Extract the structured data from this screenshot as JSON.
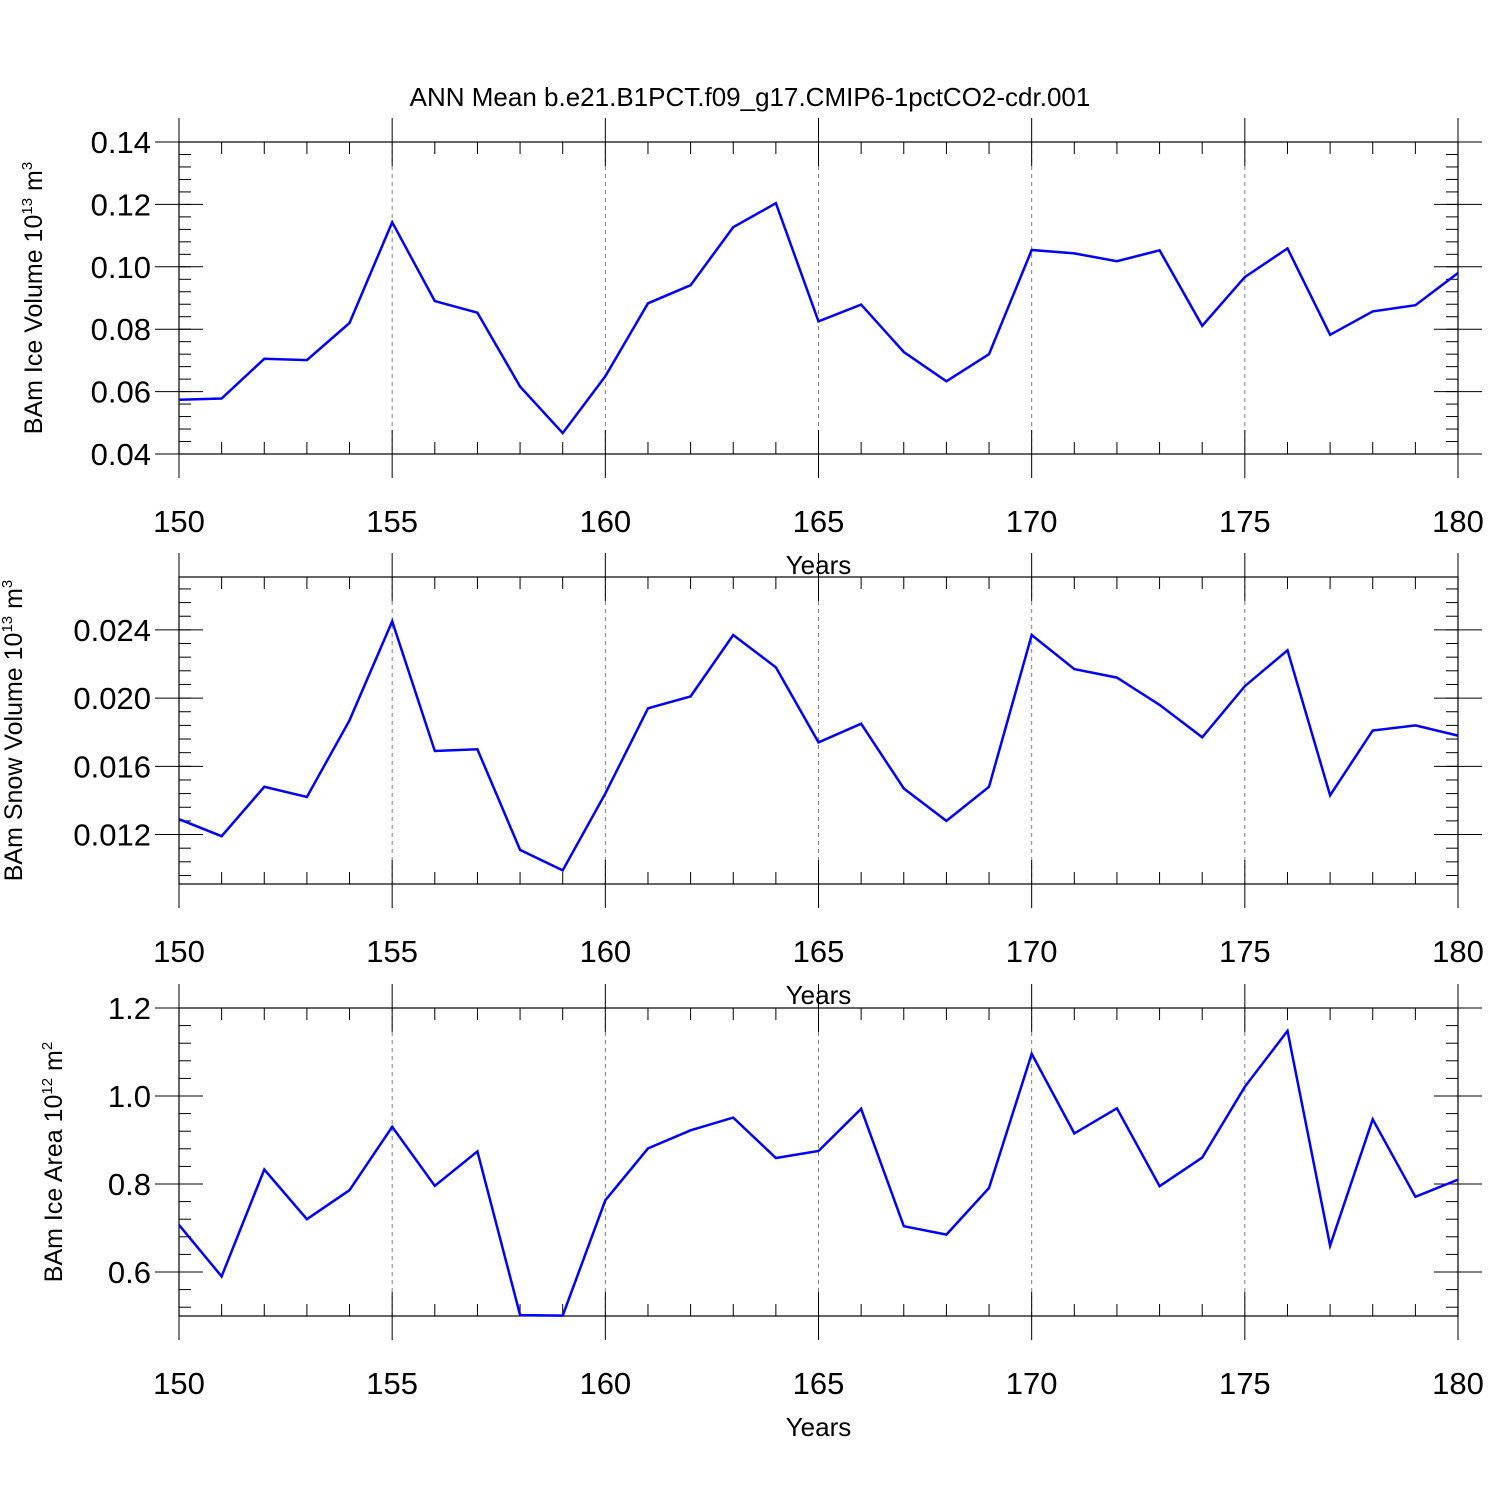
{
  "title": "ANN Mean b.e21.B1PCT.f09_g17.CMIP6-1pctCO2-cdr.001",
  "line_color": "#0000ff",
  "chart_data": [
    {
      "type": "line",
      "name": "ice-volume",
      "ylabel": {
        "main": "BAm Ice Volume 10",
        "sup": "13",
        "unit": " m",
        "unitsup": "3"
      },
      "xlabel": "Years",
      "xlim": [
        150,
        180
      ],
      "ylim": [
        0.04,
        0.14
      ],
      "yticks": [
        0.04,
        0.06,
        0.08,
        0.1,
        0.12,
        0.14
      ],
      "ytick_labels": [
        "0.04",
        "0.06",
        "0.08",
        "0.10",
        "0.12",
        "0.14"
      ],
      "xticks": [
        150,
        155,
        160,
        165,
        170,
        175,
        180
      ],
      "xtick_labels": [
        "150",
        "155",
        "160",
        "165",
        "170",
        "175",
        "180"
      ],
      "x": [
        150,
        151,
        152,
        153,
        154,
        155,
        156,
        157,
        158,
        159,
        160,
        161,
        162,
        163,
        164,
        165,
        166,
        167,
        168,
        169,
        170,
        171,
        172,
        173,
        174,
        175,
        176,
        177,
        178,
        179,
        180
      ],
      "values": [
        0.0574,
        0.0578,
        0.0705,
        0.0701,
        0.082,
        0.1143,
        0.089,
        0.0853,
        0.0616,
        0.0467,
        0.0649,
        0.0883,
        0.0941,
        0.1127,
        0.1204,
        0.0825,
        0.0879,
        0.0727,
        0.0633,
        0.072,
        0.1054,
        0.1043,
        0.1018,
        0.1053,
        0.0811,
        0.0967,
        0.1059,
        0.0782,
        0.0857,
        0.0877,
        0.098
      ]
    },
    {
      "type": "line",
      "name": "snow-volume",
      "ylabel": {
        "main": "BAm Snow Volume 10",
        "sup": "13",
        "unit": " m",
        "unitsup": "3"
      },
      "xlabel": "Years",
      "xlim": [
        150,
        180
      ],
      "ylim": [
        0.0091,
        0.0271
      ],
      "yticks": [
        0.012,
        0.016,
        0.02,
        0.024
      ],
      "ytick_labels": [
        "0.012",
        "0.016",
        "0.020",
        "0.024"
      ],
      "xticks": [
        150,
        155,
        160,
        165,
        170,
        175,
        180
      ],
      "xtick_labels": [
        "150",
        "155",
        "160",
        "165",
        "170",
        "175",
        "180"
      ],
      "x": [
        150,
        151,
        152,
        153,
        154,
        155,
        156,
        157,
        158,
        159,
        160,
        161,
        162,
        163,
        164,
        165,
        166,
        167,
        168,
        169,
        170,
        171,
        172,
        173,
        174,
        175,
        176,
        177,
        178,
        179,
        180
      ],
      "values": [
        0.0129,
        0.0119,
        0.0148,
        0.0142,
        0.0187,
        0.0245,
        0.0169,
        0.017,
        0.0111,
        0.0099,
        0.0144,
        0.0194,
        0.0201,
        0.0237,
        0.0218,
        0.0174,
        0.0185,
        0.0147,
        0.0128,
        0.0148,
        0.0237,
        0.0217,
        0.0212,
        0.0196,
        0.0177,
        0.0207,
        0.0228,
        0.0143,
        0.0181,
        0.0184,
        0.0178
      ]
    },
    {
      "type": "line",
      "name": "ice-area",
      "ylabel": {
        "main": "BAm Ice Area 10",
        "sup": "12",
        "unit": " m",
        "unitsup": "2"
      },
      "xlabel": "Years",
      "xlim": [
        150,
        180
      ],
      "ylim": [
        0.5,
        1.2
      ],
      "yticks": [
        0.6,
        0.8,
        1.0,
        1.2
      ],
      "ytick_labels": [
        "0.6",
        "0.8",
        "1.0",
        "1.2"
      ],
      "xticks": [
        150,
        155,
        160,
        165,
        170,
        175,
        180
      ],
      "xtick_labels": [
        "150",
        "155",
        "160",
        "165",
        "170",
        "175",
        "180"
      ],
      "x": [
        150,
        151,
        152,
        153,
        154,
        155,
        156,
        157,
        158,
        159,
        160,
        161,
        162,
        163,
        164,
        165,
        166,
        167,
        168,
        169,
        170,
        171,
        172,
        173,
        174,
        175,
        176,
        177,
        178,
        179,
        180
      ],
      "values": [
        0.707,
        0.59,
        0.833,
        0.72,
        0.786,
        0.93,
        0.796,
        0.874,
        0.502,
        0.501,
        0.763,
        0.881,
        0.922,
        0.951,
        0.859,
        0.875,
        0.971,
        0.704,
        0.685,
        0.791,
        1.096,
        0.915,
        0.972,
        0.795,
        0.86,
        1.021,
        1.148,
        0.66,
        0.947,
        0.771,
        0.81
      ]
    }
  ]
}
